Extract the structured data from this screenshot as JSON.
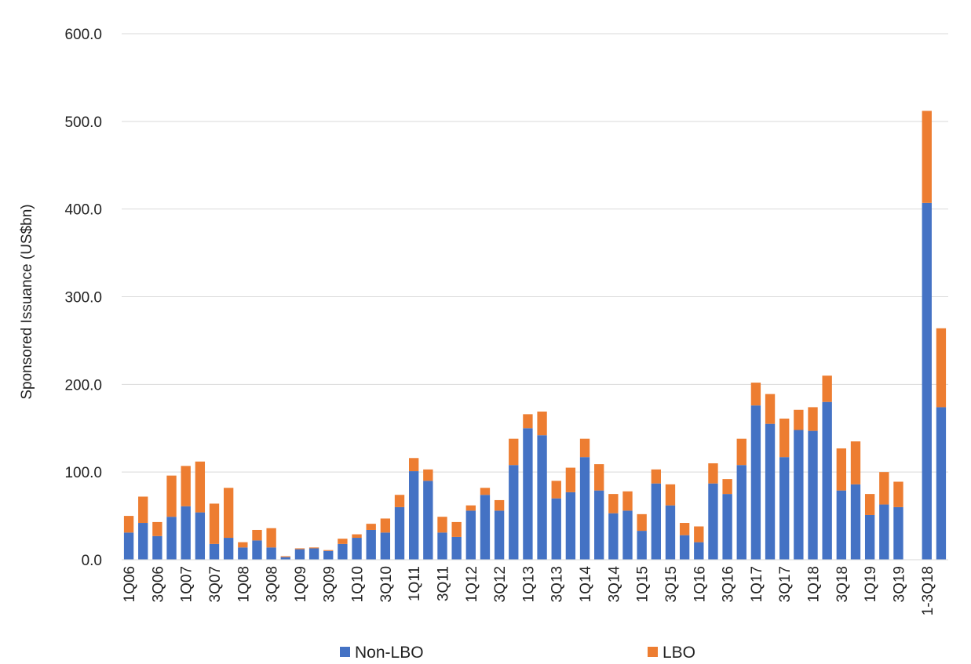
{
  "chart_data": {
    "type": "bar",
    "stacked": true,
    "title": "",
    "xlabel": "",
    "ylabel": "Sponsored Issuance (US$bn)",
    "ylim": [
      0,
      600
    ],
    "yticks": [
      0,
      100,
      200,
      300,
      400,
      500,
      600
    ],
    "ytick_labels": [
      "0.0",
      "100.0",
      "200.0",
      "300.0",
      "400.0",
      "500.0",
      "600.0"
    ],
    "grid": true,
    "legend_position": "bottom",
    "colors": {
      "Non-LBO": "#4472c4",
      "LBO": "#ed7d31"
    },
    "categories": [
      "1Q06",
      "2Q06",
      "3Q06",
      "4Q06",
      "1Q07",
      "2Q07",
      "3Q07",
      "4Q07",
      "1Q08",
      "2Q08",
      "3Q08",
      "4Q08",
      "1Q09",
      "2Q09",
      "3Q09",
      "4Q09",
      "1Q10",
      "2Q10",
      "3Q10",
      "4Q10",
      "1Q11",
      "2Q11",
      "3Q11",
      "4Q11",
      "1Q12",
      "2Q12",
      "3Q12",
      "4Q12",
      "1Q13",
      "2Q13",
      "3Q13",
      "4Q13",
      "1Q14",
      "2Q14",
      "3Q14",
      "4Q14",
      "1Q15",
      "2Q15",
      "3Q15",
      "4Q15",
      "1Q16",
      "2Q16",
      "3Q16",
      "4Q16",
      "1Q17",
      "2Q17",
      "3Q17",
      "4Q17",
      "1Q18",
      "2Q18",
      "3Q18",
      "4Q18",
      "1Q19",
      "2Q19",
      "3Q19",
      "",
      "1-3Q18",
      "1-3Q19"
    ],
    "xtick_labels": [
      "1Q06",
      "",
      "3Q06",
      "",
      "1Q07",
      "",
      "3Q07",
      "",
      "1Q08",
      "",
      "3Q08",
      "",
      "1Q09",
      "",
      "3Q09",
      "",
      "1Q10",
      "",
      "3Q10",
      "",
      "1Q11",
      "",
      "3Q11",
      "",
      "1Q12",
      "",
      "3Q12",
      "",
      "1Q13",
      "",
      "3Q13",
      "",
      "1Q14",
      "",
      "3Q14",
      "",
      "1Q15",
      "",
      "3Q15",
      "",
      "1Q16",
      "",
      "3Q16",
      "",
      "1Q17",
      "",
      "3Q17",
      "",
      "1Q18",
      "",
      "3Q18",
      "",
      "1Q19",
      "",
      "3Q19",
      "",
      "1-3Q18",
      ""
    ],
    "series": [
      {
        "name": "Non-LBO",
        "values": [
          31,
          42,
          27,
          49,
          61,
          54,
          18,
          25,
          14,
          22,
          14,
          3,
          12,
          13,
          10,
          18,
          25,
          34,
          31,
          60,
          101,
          90,
          31,
          26,
          56,
          74,
          56,
          108,
          150,
          142,
          70,
          77,
          117,
          79,
          53,
          56,
          33,
          87,
          62,
          28,
          20,
          87,
          75,
          108,
          176,
          155,
          117,
          148,
          147,
          180,
          79,
          86,
          51,
          63,
          60,
          0,
          407,
          174
        ]
      },
      {
        "name": "LBO",
        "values": [
          19,
          30,
          16,
          47,
          46,
          58,
          46,
          57,
          6,
          12,
          22,
          1,
          1,
          1,
          1,
          6,
          4,
          7,
          16,
          14,
          15,
          13,
          18,
          17,
          6,
          8,
          12,
          30,
          16,
          27,
          20,
          28,
          21,
          30,
          22,
          22,
          19,
          16,
          24,
          14,
          18,
          23,
          17,
          30,
          26,
          34,
          44,
          23,
          27,
          30,
          48,
          49,
          24,
          37,
          29,
          0,
          105,
          90
        ]
      }
    ]
  }
}
